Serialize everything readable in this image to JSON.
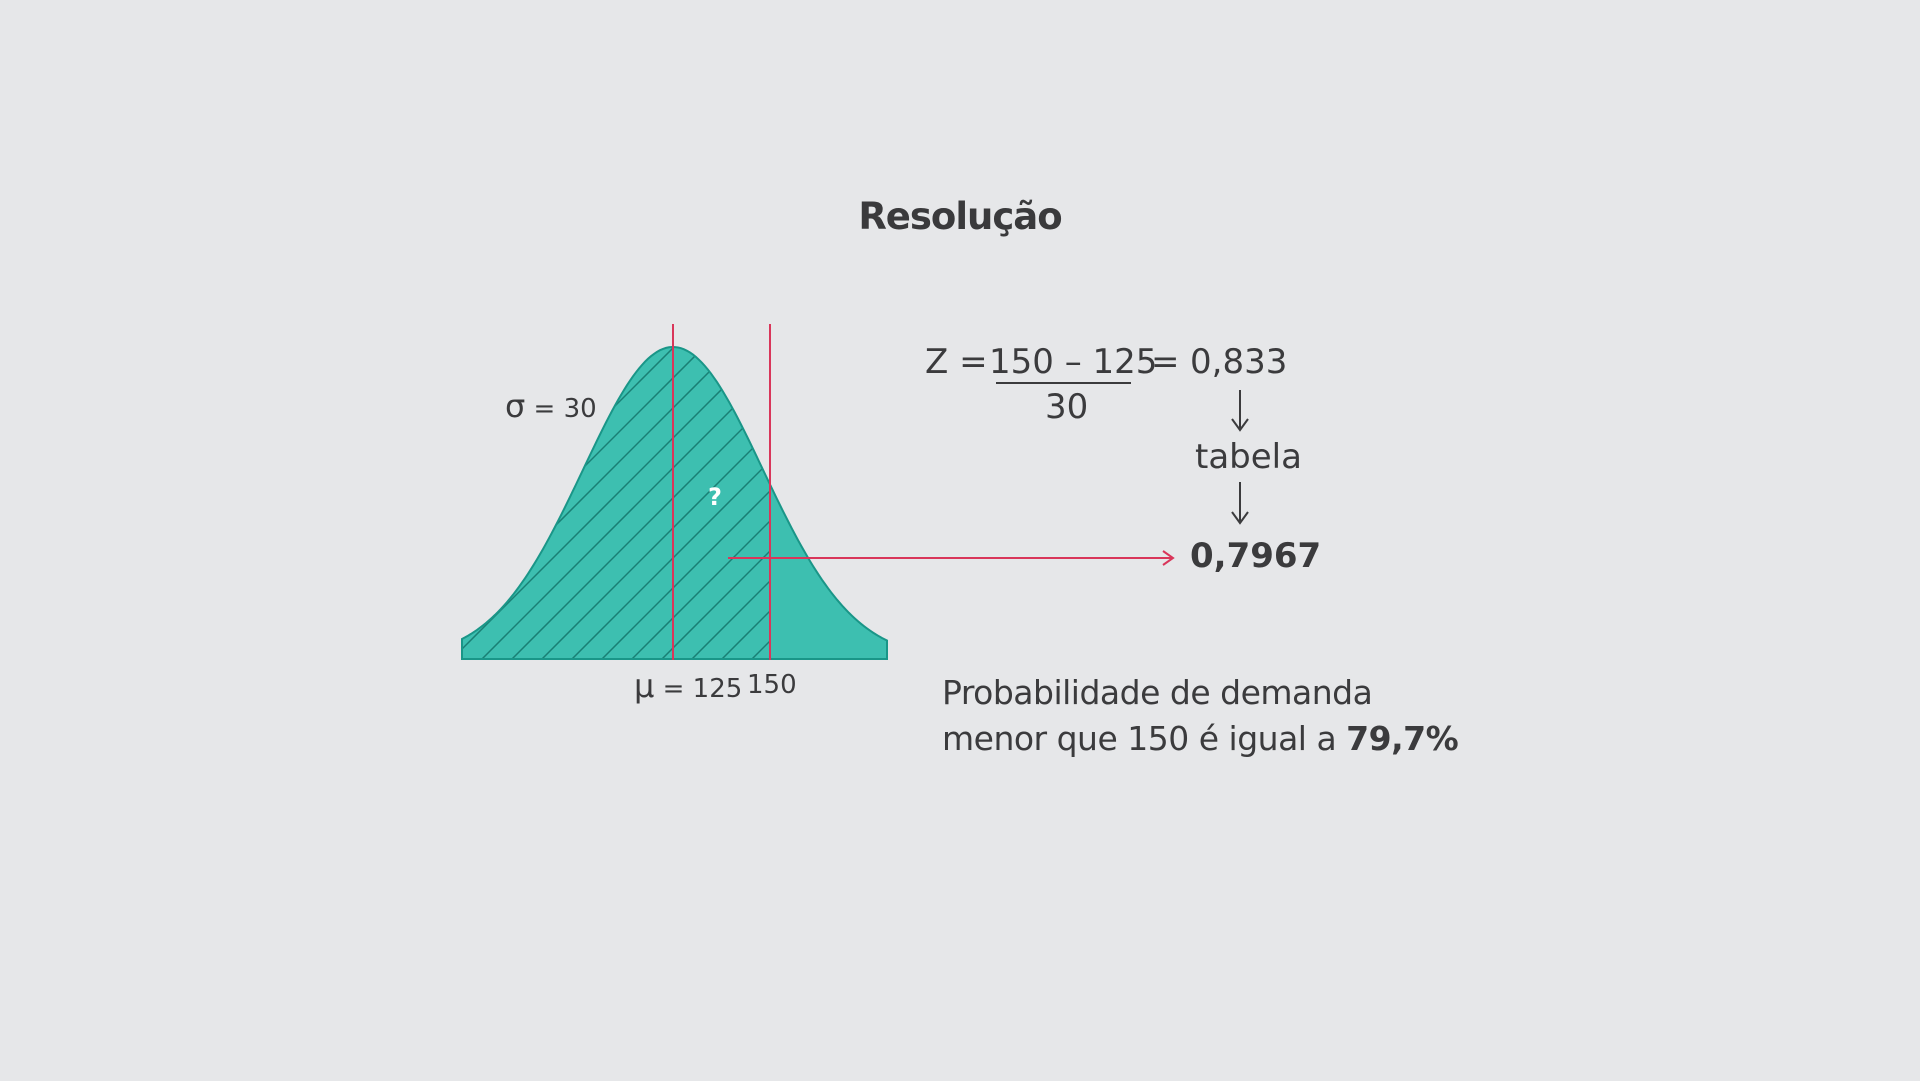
{
  "title": "Resolução",
  "curve": {
    "sigma_symbol": "σ",
    "sigma_value": "= 30",
    "mu_symbol": "μ",
    "mu_value": "= 125",
    "x_value": "150",
    "area_label": "?"
  },
  "formula": {
    "z": "Z  =",
    "numerator": "150 – 125",
    "denominator": "30",
    "equals": "=",
    "z_value": "0,833",
    "table_label": "tabela",
    "table_value": "0,7967"
  },
  "conclusion": {
    "line1": "Probabilidade de demanda",
    "line2_prefix": "menor  que 150 é igual a ",
    "line2_value": "79,7%"
  },
  "colors": {
    "background": "#e6e7e9",
    "curve_fill": "#3dbfb0",
    "curve_stroke": "#1a9688",
    "hatch": "#1a7f74",
    "marker_line": "#d9365a",
    "text": "#3b3b3d"
  }
}
